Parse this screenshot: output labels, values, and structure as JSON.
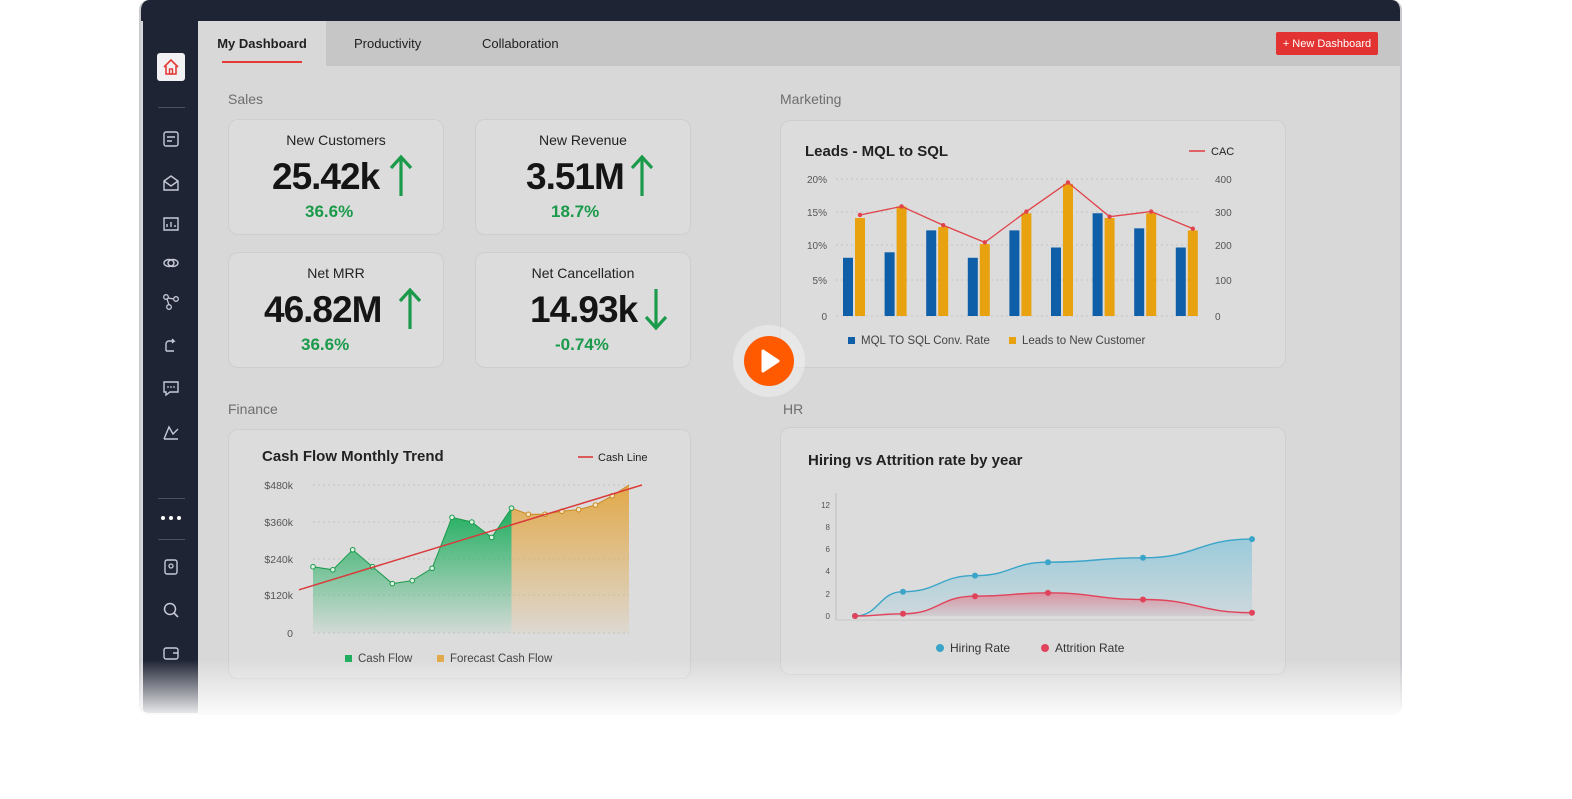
{
  "tabs": [
    "My Dashboard",
    "Productivity",
    "Collaboration"
  ],
  "new_dashboard_label": "+ New Dashboard",
  "sections": {
    "sales": "Sales",
    "marketing": "Marketing",
    "finance": "Finance",
    "hr": "HR"
  },
  "kpis": [
    {
      "title": "New Customers",
      "value": "25.42k",
      "pct": "36.6%",
      "trend": "up"
    },
    {
      "title": "New Revenue",
      "value": "3.51M",
      "pct": "18.7%",
      "trend": "up"
    },
    {
      "title": "Net MRR",
      "value": "46.82M",
      "pct": "36.6%",
      "trend": "up"
    },
    {
      "title": "Net Cancellation",
      "value": "14.93k",
      "pct": "-0.74%",
      "trend": "down"
    }
  ],
  "colors": {
    "accent": "#e23232",
    "positive": "#1a9a4a",
    "sidebar": "#1f2435",
    "play": "#ff5a00"
  },
  "sidebar_icons": [
    "home-icon",
    "report-icon",
    "inbox-icon",
    "folder-chart-icon",
    "link-icon",
    "flow-icon",
    "workflow-icon",
    "chat-icon",
    "analytics-icon",
    "more-icon",
    "contacts-icon",
    "search-icon",
    "wallet-icon"
  ],
  "chart_data": [
    {
      "type": "bar",
      "title": "Leads - MQL to SQL",
      "y_left_ticks": [
        "20%",
        "15%",
        "10%",
        "5%",
        "0"
      ],
      "y_right_ticks": [
        "400",
        "300",
        "200",
        "100",
        "0"
      ],
      "ylim_left": [
        0,
        20
      ],
      "ylim_right": [
        0,
        400
      ],
      "series": [
        {
          "name": "MQL TO SQL Conv. Rate",
          "color": "#0f5ea8",
          "values": [
            8.5,
            9.3,
            12.5,
            8.5,
            12.5,
            10,
            15,
            12.8,
            10
          ]
        },
        {
          "name": "Leads to New Customer",
          "color": "#e8a20f",
          "values": [
            14.3,
            16,
            13,
            10.5,
            15,
            19.3,
            14.3,
            15,
            12.5
          ]
        },
        {
          "name": "CAC",
          "color": "#e0434a",
          "type": "line",
          "values": [
            295,
            320,
            265,
            215,
            305,
            390,
            290,
            305,
            255
          ]
        }
      ]
    },
    {
      "type": "area",
      "title": "Cash Flow Monthly Trend",
      "y_ticks": [
        "$480k",
        "$360k",
        "$240k",
        "$120k",
        "0"
      ],
      "ylim": [
        0,
        480
      ],
      "series": [
        {
          "name": "Cash Flow",
          "color": "#1fae5f",
          "values": [
            215,
            205,
            270,
            215,
            160,
            170,
            210,
            375,
            360,
            310,
            405
          ]
        },
        {
          "name": "Forecast Cash Flow",
          "color": "#e2a94a",
          "values": [
            405,
            385,
            385,
            395,
            400,
            415,
            445,
            480
          ]
        },
        {
          "name": "Cash Line",
          "color": "#d93a3a",
          "type": "line",
          "values": [
            140,
            480
          ]
        }
      ]
    },
    {
      "type": "area",
      "title": "Hiring vs Attrition rate by year",
      "y_ticks": [
        "12",
        "8",
        "6",
        "4",
        "2",
        "0"
      ],
      "ylim": [
        0,
        12
      ],
      "series": [
        {
          "name": "Hiring Rate",
          "color": "#3aa5c8",
          "values": [
            0,
            2.2,
            3.6,
            4.8,
            5.2,
            6.9
          ]
        },
        {
          "name": "Attrition Rate",
          "color": "#e0435a",
          "values": [
            0,
            0.2,
            1.8,
            2.1,
            1.5,
            0.3
          ]
        }
      ]
    }
  ]
}
